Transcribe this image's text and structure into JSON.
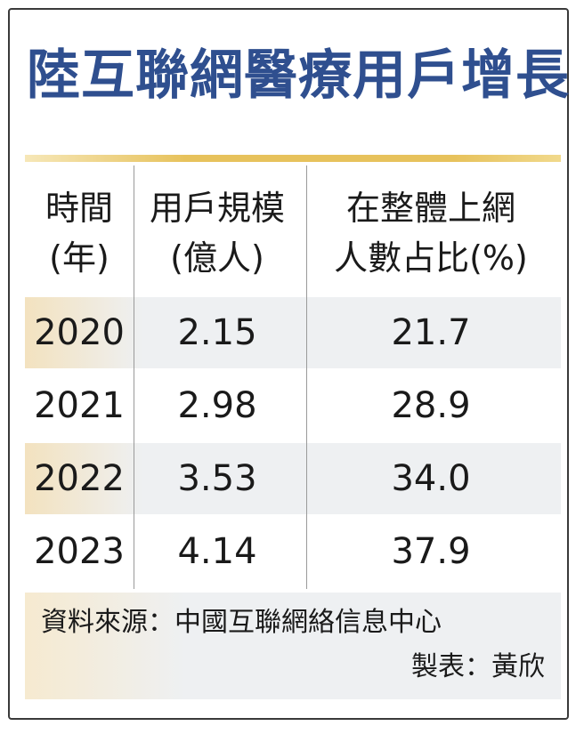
{
  "title": "陸互聯網醫療用戶增長",
  "chart_data": {
    "type": "table",
    "columns": [
      {
        "lines": [
          "時間",
          "(年)"
        ]
      },
      {
        "lines": [
          "用戶規模",
          "(億人)"
        ]
      },
      {
        "lines": [
          "在整體上網",
          "人數占比(%)"
        ]
      }
    ],
    "rows": [
      {
        "year": "2020",
        "users": "2.15",
        "share": "21.7"
      },
      {
        "year": "2021",
        "users": "2.98",
        "share": "28.9"
      },
      {
        "year": "2022",
        "users": "3.53",
        "share": "34.0"
      },
      {
        "year": "2023",
        "users": "4.14",
        "share": "37.9"
      }
    ]
  },
  "footer": {
    "source": "資料來源：中國互聯網絡信息中心",
    "maker": "製表：黃欣"
  },
  "colors": {
    "title": "#2f4f8f",
    "gold_rule": "#e7c25c",
    "row_shade": "#eef0f2",
    "row_shade_warm": "#f3e2bf",
    "border": "#3a3a3a"
  }
}
